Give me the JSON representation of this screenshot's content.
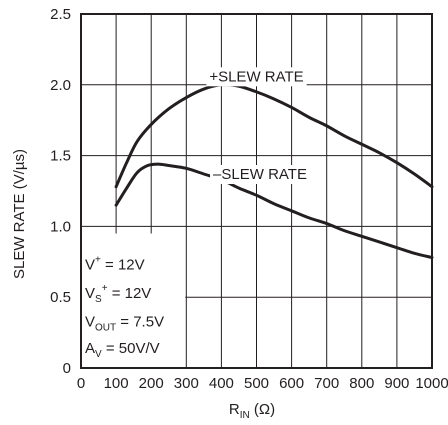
{
  "chart_data": {
    "type": "line",
    "title": "",
    "xlabel": {
      "main": "R",
      "sub": "IN",
      "unit": " (Ω)"
    },
    "ylabel": "SLEW RATE (V/µs)",
    "xlim": [
      0,
      1000
    ],
    "ylim": [
      0,
      2.5
    ],
    "x_ticks": [
      0,
      100,
      200,
      300,
      400,
      500,
      600,
      700,
      800,
      900,
      1000
    ],
    "x_tick_labels": [
      "0",
      "100",
      "200",
      "300",
      "400",
      "500",
      "600",
      "700",
      "800",
      "900",
      "1000"
    ],
    "y_ticks": [
      0,
      0.5,
      1.0,
      1.5,
      2.0,
      2.5
    ],
    "y_tick_labels": [
      "0",
      "0.5",
      "1.0",
      "1.5",
      "2.0",
      "2.5"
    ],
    "grid": true,
    "series": [
      {
        "name": "+SLEW RATE",
        "x": [
          100,
          130,
          160,
          200,
          250,
          300,
          350,
          400,
          450,
          500,
          550,
          600,
          650,
          700,
          750,
          800,
          850,
          900,
          950,
          1000
        ],
        "y": [
          1.28,
          1.45,
          1.6,
          1.72,
          1.83,
          1.91,
          1.97,
          2.0,
          1.99,
          1.95,
          1.9,
          1.84,
          1.77,
          1.71,
          1.64,
          1.58,
          1.52,
          1.45,
          1.37,
          1.28
        ]
      },
      {
        "name": "–SLEW RATE",
        "x": [
          100,
          130,
          160,
          190,
          220,
          250,
          300,
          350,
          400,
          450,
          500,
          550,
          600,
          650,
          700,
          750,
          800,
          850,
          900,
          950,
          1000
        ],
        "y": [
          1.15,
          1.27,
          1.38,
          1.43,
          1.44,
          1.43,
          1.41,
          1.37,
          1.33,
          1.27,
          1.22,
          1.16,
          1.11,
          1.06,
          1.02,
          0.97,
          0.93,
          0.89,
          0.85,
          0.81,
          0.78
        ]
      }
    ],
    "conditions": [
      {
        "main": "V",
        "sup": "+",
        "sub": "",
        "rest": " = 12V"
      },
      {
        "main": "V",
        "sub": "S",
        "sup": "+",
        "rest": " = 12V"
      },
      {
        "main": "V",
        "sub": "OUT",
        "sup": "",
        "rest": " = 7.5V"
      },
      {
        "main": "A",
        "sub": "V",
        "sup": "",
        "rest": " = 50V/V"
      }
    ]
  }
}
